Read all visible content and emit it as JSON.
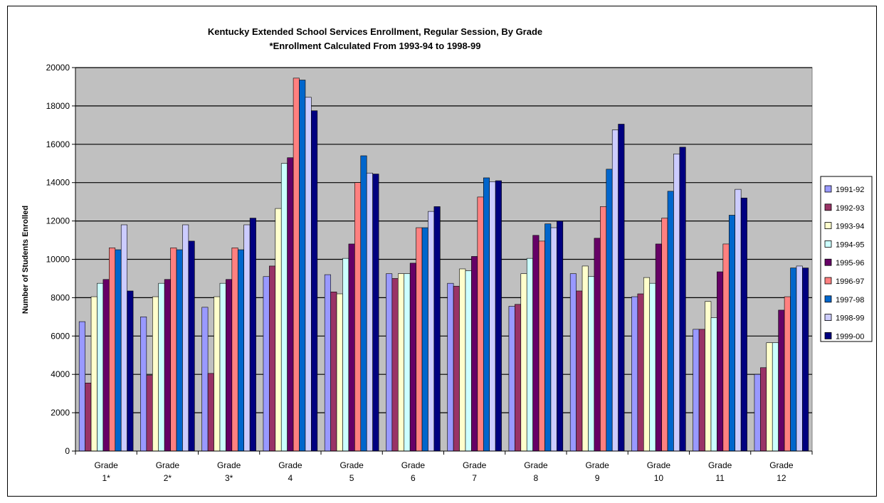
{
  "chart_data": {
    "type": "bar",
    "title": "Kentucky Extended School Services Enrollment, Regular Session, By Grade",
    "subtitle": "*Enrollment Calculated From 1993-94 to 1998-99",
    "xlabel": "",
    "ylabel": "Number of Students Enrolled",
    "ylim": [
      0,
      20000
    ],
    "yticks": [
      0,
      2000,
      4000,
      6000,
      8000,
      10000,
      12000,
      14000,
      16000,
      18000,
      20000
    ],
    "grid": true,
    "legend_position": "right",
    "categories": [
      [
        "Grade",
        "1*"
      ],
      [
        "Grade",
        "2*"
      ],
      [
        "Grade",
        "3*"
      ],
      [
        "Grade",
        "4"
      ],
      [
        "Grade",
        "5"
      ],
      [
        "Grade",
        "6"
      ],
      [
        "Grade",
        "7"
      ],
      [
        "Grade",
        "8"
      ],
      [
        "Grade",
        "9"
      ],
      [
        "Grade",
        "10"
      ],
      [
        "Grade",
        "11"
      ],
      [
        "Grade",
        "12"
      ]
    ],
    "series": [
      {
        "name": "1991-92",
        "color": "#9999ff",
        "values": [
          6750,
          7000,
          7500,
          9100,
          9200,
          9250,
          8750,
          7550,
          9250,
          8050,
          6350,
          4000
        ]
      },
      {
        "name": "1992-93",
        "color": "#993366",
        "values": [
          3550,
          3950,
          4050,
          9650,
          8300,
          9000,
          8600,
          7650,
          8350,
          8200,
          6350,
          4350
        ]
      },
      {
        "name": "1993-94",
        "color": "#ffffcc",
        "values": [
          8050,
          8050,
          8050,
          12650,
          8200,
          9250,
          9500,
          9250,
          9650,
          9050,
          7800,
          5650
        ]
      },
      {
        "name": "1994-95",
        "color": "#ccffff",
        "values": [
          8750,
          8750,
          8750,
          15000,
          10050,
          9250,
          9400,
          10050,
          9100,
          8750,
          6950,
          5650
        ]
      },
      {
        "name": "1995-96",
        "color": "#660066",
        "values": [
          8950,
          8950,
          8950,
          15300,
          10800,
          9800,
          10150,
          11250,
          11100,
          10800,
          9350,
          7350
        ]
      },
      {
        "name": "1996-97",
        "color": "#ff8080",
        "values": [
          10600,
          10600,
          10600,
          19450,
          14000,
          11650,
          13250,
          10950,
          12750,
          12150,
          10800,
          8050
        ]
      },
      {
        "name": "1997-98",
        "color": "#0066cc",
        "values": [
          10500,
          10500,
          10500,
          19350,
          15400,
          11650,
          14250,
          11850,
          14700,
          13550,
          12300,
          9550
        ]
      },
      {
        "name": "1998-99",
        "color": "#ccccff",
        "values": [
          11800,
          11800,
          11800,
          18450,
          14500,
          12500,
          14050,
          11650,
          16750,
          15500,
          13650,
          9650
        ]
      },
      {
        "name": "1999-00",
        "color": "#000080",
        "values": [
          8350,
          10950,
          12150,
          17750,
          14450,
          12750,
          14100,
          12000,
          17050,
          15850,
          13200,
          9550
        ]
      }
    ]
  }
}
